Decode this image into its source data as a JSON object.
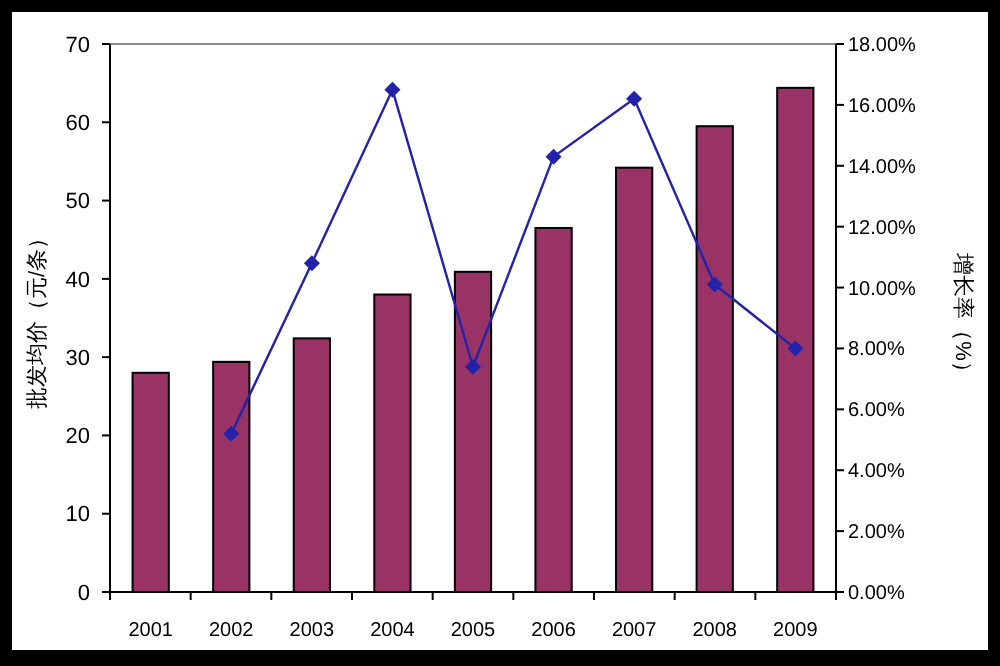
{
  "chart_data": {
    "type": "bar",
    "ylabel": "批发均价（元/条）",
    "y2label": "增长率（%）",
    "categories": [
      "2001",
      "2002",
      "2003",
      "2004",
      "2005",
      "2006",
      "2007",
      "2008",
      "2009"
    ],
    "series": [
      {
        "color": "#993366",
        "values": [
          28,
          29.4,
          32.4,
          38,
          40.9,
          46.5,
          54.2,
          59.5,
          64.4
        ]
      },
      {
        "type": "line",
        "axis": "y2",
        "color": "#2222aa",
        "marker": "diamond",
        "values": [
          null,
          5.2,
          10.8,
          16.5,
          7.4,
          14.3,
          16.2,
          10.1,
          8.0
        ]
      }
    ],
    "ylim": [
      0,
      70
    ],
    "yticks": [
      0,
      10,
      20,
      30,
      40,
      50,
      60,
      70
    ],
    "y2lim": [
      0,
      18
    ],
    "y2ticks": [
      {
        "value": 0,
        "label": "0.00%"
      },
      {
        "value": 2,
        "label": "2.00%"
      },
      {
        "value": 4,
        "label": "4.00%"
      },
      {
        "value": 6,
        "label": "6.00%"
      },
      {
        "value": 8,
        "label": "8.00%"
      },
      {
        "value": 10,
        "label": "10.00%"
      },
      {
        "value": 12,
        "label": "12.00%"
      },
      {
        "value": 14,
        "label": "14.00%"
      },
      {
        "value": 16,
        "label": "16.00%"
      },
      {
        "value": 18,
        "label": "18.00%"
      }
    ],
    "grid": false
  }
}
